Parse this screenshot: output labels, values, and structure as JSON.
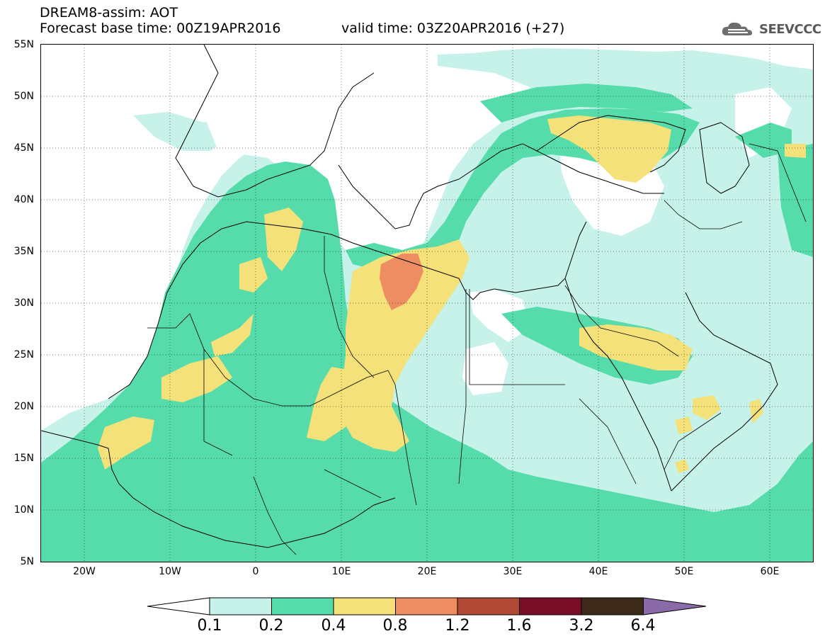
{
  "header": {
    "title_line1": "DREAM8-assim: AOT",
    "base_time": "Forecast base time: 00Z19APR2016",
    "valid_time": "valid time: 03Z20APR2016 (+27)",
    "logo_text": "SEEVCCC",
    "logo_icon": "cloud-icon"
  },
  "axes": {
    "lat_labels": [
      "55N",
      "50N",
      "45N",
      "40N",
      "35N",
      "30N",
      "25N",
      "20N",
      "15N",
      "10N",
      "5N"
    ],
    "lon_labels": [
      "20W",
      "10W",
      "0",
      "10E",
      "20E",
      "30E",
      "40E",
      "50E",
      "60E"
    ],
    "lat_range": [
      5,
      55
    ],
    "lon_range": [
      -25,
      65
    ]
  },
  "colorbar": {
    "levels": [
      "0.1",
      "0.2",
      "0.4",
      "0.8",
      "1.2",
      "1.6",
      "3.2",
      "6.4"
    ],
    "colors": [
      "#c6f2ea",
      "#56dcaa",
      "#f5e17a",
      "#ee8d62",
      "#b04a36",
      "#7a0e28",
      "#3e2a1a",
      "#8a6aa8"
    ],
    "under_color": "#ffffff",
    "over_color": "#8a6aa8"
  },
  "map": {
    "variable": "AOT",
    "layer_colors": {
      "lowest": "#c6f2ea",
      "low": "#56dcaa",
      "medium": "#f5e17a",
      "high": "#ee8d62"
    }
  }
}
